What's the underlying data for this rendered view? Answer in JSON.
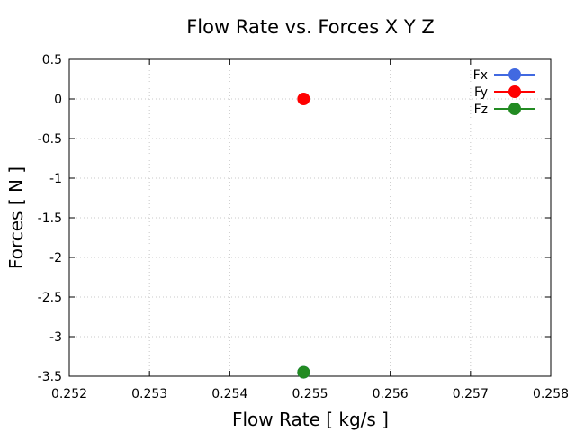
{
  "chart_data": {
    "type": "scatter",
    "title": "Flow Rate vs. Forces X Y Z",
    "xlabel": "Flow Rate [ kg/s ]",
    "ylabel": "Forces [ N ]",
    "xlim": [
      0.252,
      0.258
    ],
    "ylim": [
      -3.5,
      0.5
    ],
    "xticks": [
      "0.252",
      "0.253",
      "0.254",
      "0.255",
      "0.256",
      "0.257",
      "0.258"
    ],
    "yticks": [
      "0.5",
      "0",
      "-0.5",
      "-1",
      "-1.5",
      "-2",
      "-2.5",
      "-3",
      "-3.5"
    ],
    "grid": true,
    "legend_position": "top-right",
    "series": [
      {
        "name": "Fx",
        "color": "#4169e1",
        "points": [
          [
            0.25492,
            -3.45
          ]
        ]
      },
      {
        "name": "Fy",
        "color": "#ff0000",
        "points": [
          [
            0.25492,
            0.0
          ]
        ]
      },
      {
        "name": "Fz",
        "color": "#228b22",
        "points": [
          [
            0.25492,
            -3.45
          ]
        ]
      }
    ]
  }
}
